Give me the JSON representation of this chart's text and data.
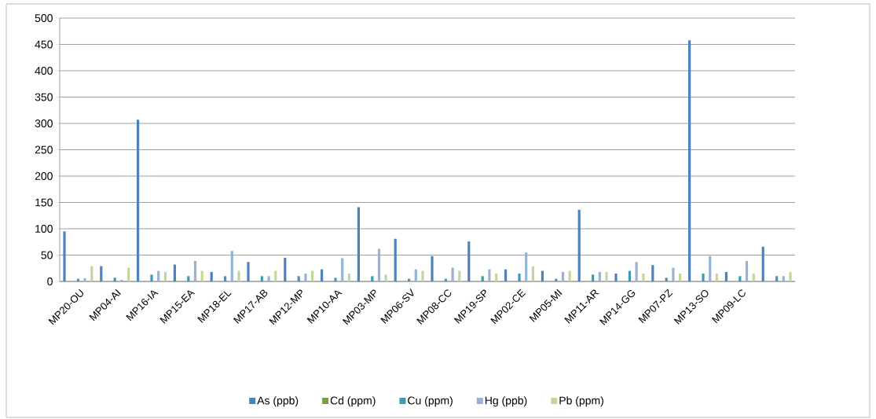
{
  "chart_data": {
    "type": "bar",
    "categories": [
      "MP20-OU",
      "MP04-AI",
      "MP16-IA",
      "MP15-EA",
      "MP18-EL",
      "MP17-AB",
      "MP12-MP",
      "MP10-AA",
      "MP03-MP",
      "MP06-SV",
      "MP08-CC",
      "MP19-SP",
      "MP02-CE",
      "MP05-MI",
      "MP11-AR",
      "MP14-GG",
      "MP07-PZ",
      "MP13-SO",
      "MP09-LC",
      null
    ],
    "series": [
      {
        "name": "As (ppb)",
        "color": "#4f81bd",
        "values": [
          95,
          29,
          307,
          32,
          18,
          37,
          45,
          23,
          141,
          81,
          48,
          76,
          23,
          20,
          136,
          15,
          31,
          458,
          18,
          66
        ]
      },
      {
        "name": "Cd (ppm)",
        "color": "#77a03c",
        "values": [
          null,
          null,
          null,
          null,
          null,
          null,
          null,
          null,
          null,
          null,
          null,
          null,
          null,
          null,
          null,
          null,
          null,
          null,
          null,
          null
        ]
      },
      {
        "name": "Cu (ppm)",
        "color": "#3c9ab4",
        "values": [
          5,
          7,
          13,
          10,
          10,
          10,
          10,
          7,
          10,
          5,
          5,
          10,
          15,
          5,
          13,
          20,
          7,
          15,
          10,
          10
        ]
      },
      {
        "name": "Hg (ppb)",
        "color": "#95b3d7",
        "values": [
          6,
          3,
          20,
          39,
          58,
          10,
          15,
          44,
          62,
          23,
          26,
          23,
          55,
          18,
          18,
          37,
          26,
          48,
          39,
          10
        ]
      },
      {
        "name": "Pb (ppm)",
        "color": "#c3d69b",
        "values": [
          29,
          26,
          18,
          20,
          20,
          20,
          20,
          15,
          13,
          20,
          20,
          15,
          29,
          20,
          18,
          15,
          15,
          15,
          15,
          18
        ]
      }
    ],
    "ylim": [
      0,
      500
    ],
    "yticks": [
      0,
      50,
      100,
      150,
      200,
      250,
      300,
      350,
      400,
      450,
      500
    ],
    "grid": "y",
    "legend": "bottom"
  }
}
